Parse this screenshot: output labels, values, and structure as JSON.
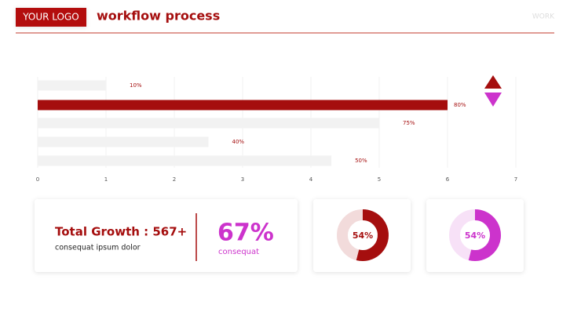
{
  "header": {
    "logo": "YOUR LOGO",
    "title": "workflow process",
    "tag": "WORK"
  },
  "chart_data": [
    {
      "type": "bar",
      "orientation": "horizontal",
      "categories": [
        null,
        null,
        null,
        null,
        null
      ],
      "values": [
        1,
        6,
        5,
        2.5,
        4.3
      ],
      "annotations": [
        "10%",
        "80%",
        "75%",
        "40%",
        "50%"
      ],
      "colors": [
        "#f2f2f2",
        "#a50e0e",
        "#f2f2f2",
        "#f2f2f2",
        "#f2f2f2"
      ],
      "xlim": [
        0,
        7
      ],
      "xticks": [
        0,
        1,
        2,
        3,
        4,
        5,
        6,
        7
      ],
      "grid": true
    },
    {
      "type": "donut",
      "values": [
        54
      ],
      "value_labels": [
        "54%"
      ],
      "color": "#a50e0e"
    },
    {
      "type": "donut",
      "values": [
        54
      ],
      "value_labels": [
        "54%"
      ],
      "color": "#cc33cc"
    }
  ],
  "stats": {
    "title": "Total Growth :  567+",
    "subtitle": "consequat ipsum dolor",
    "percent": "67%",
    "percent_caption": "consequat"
  }
}
